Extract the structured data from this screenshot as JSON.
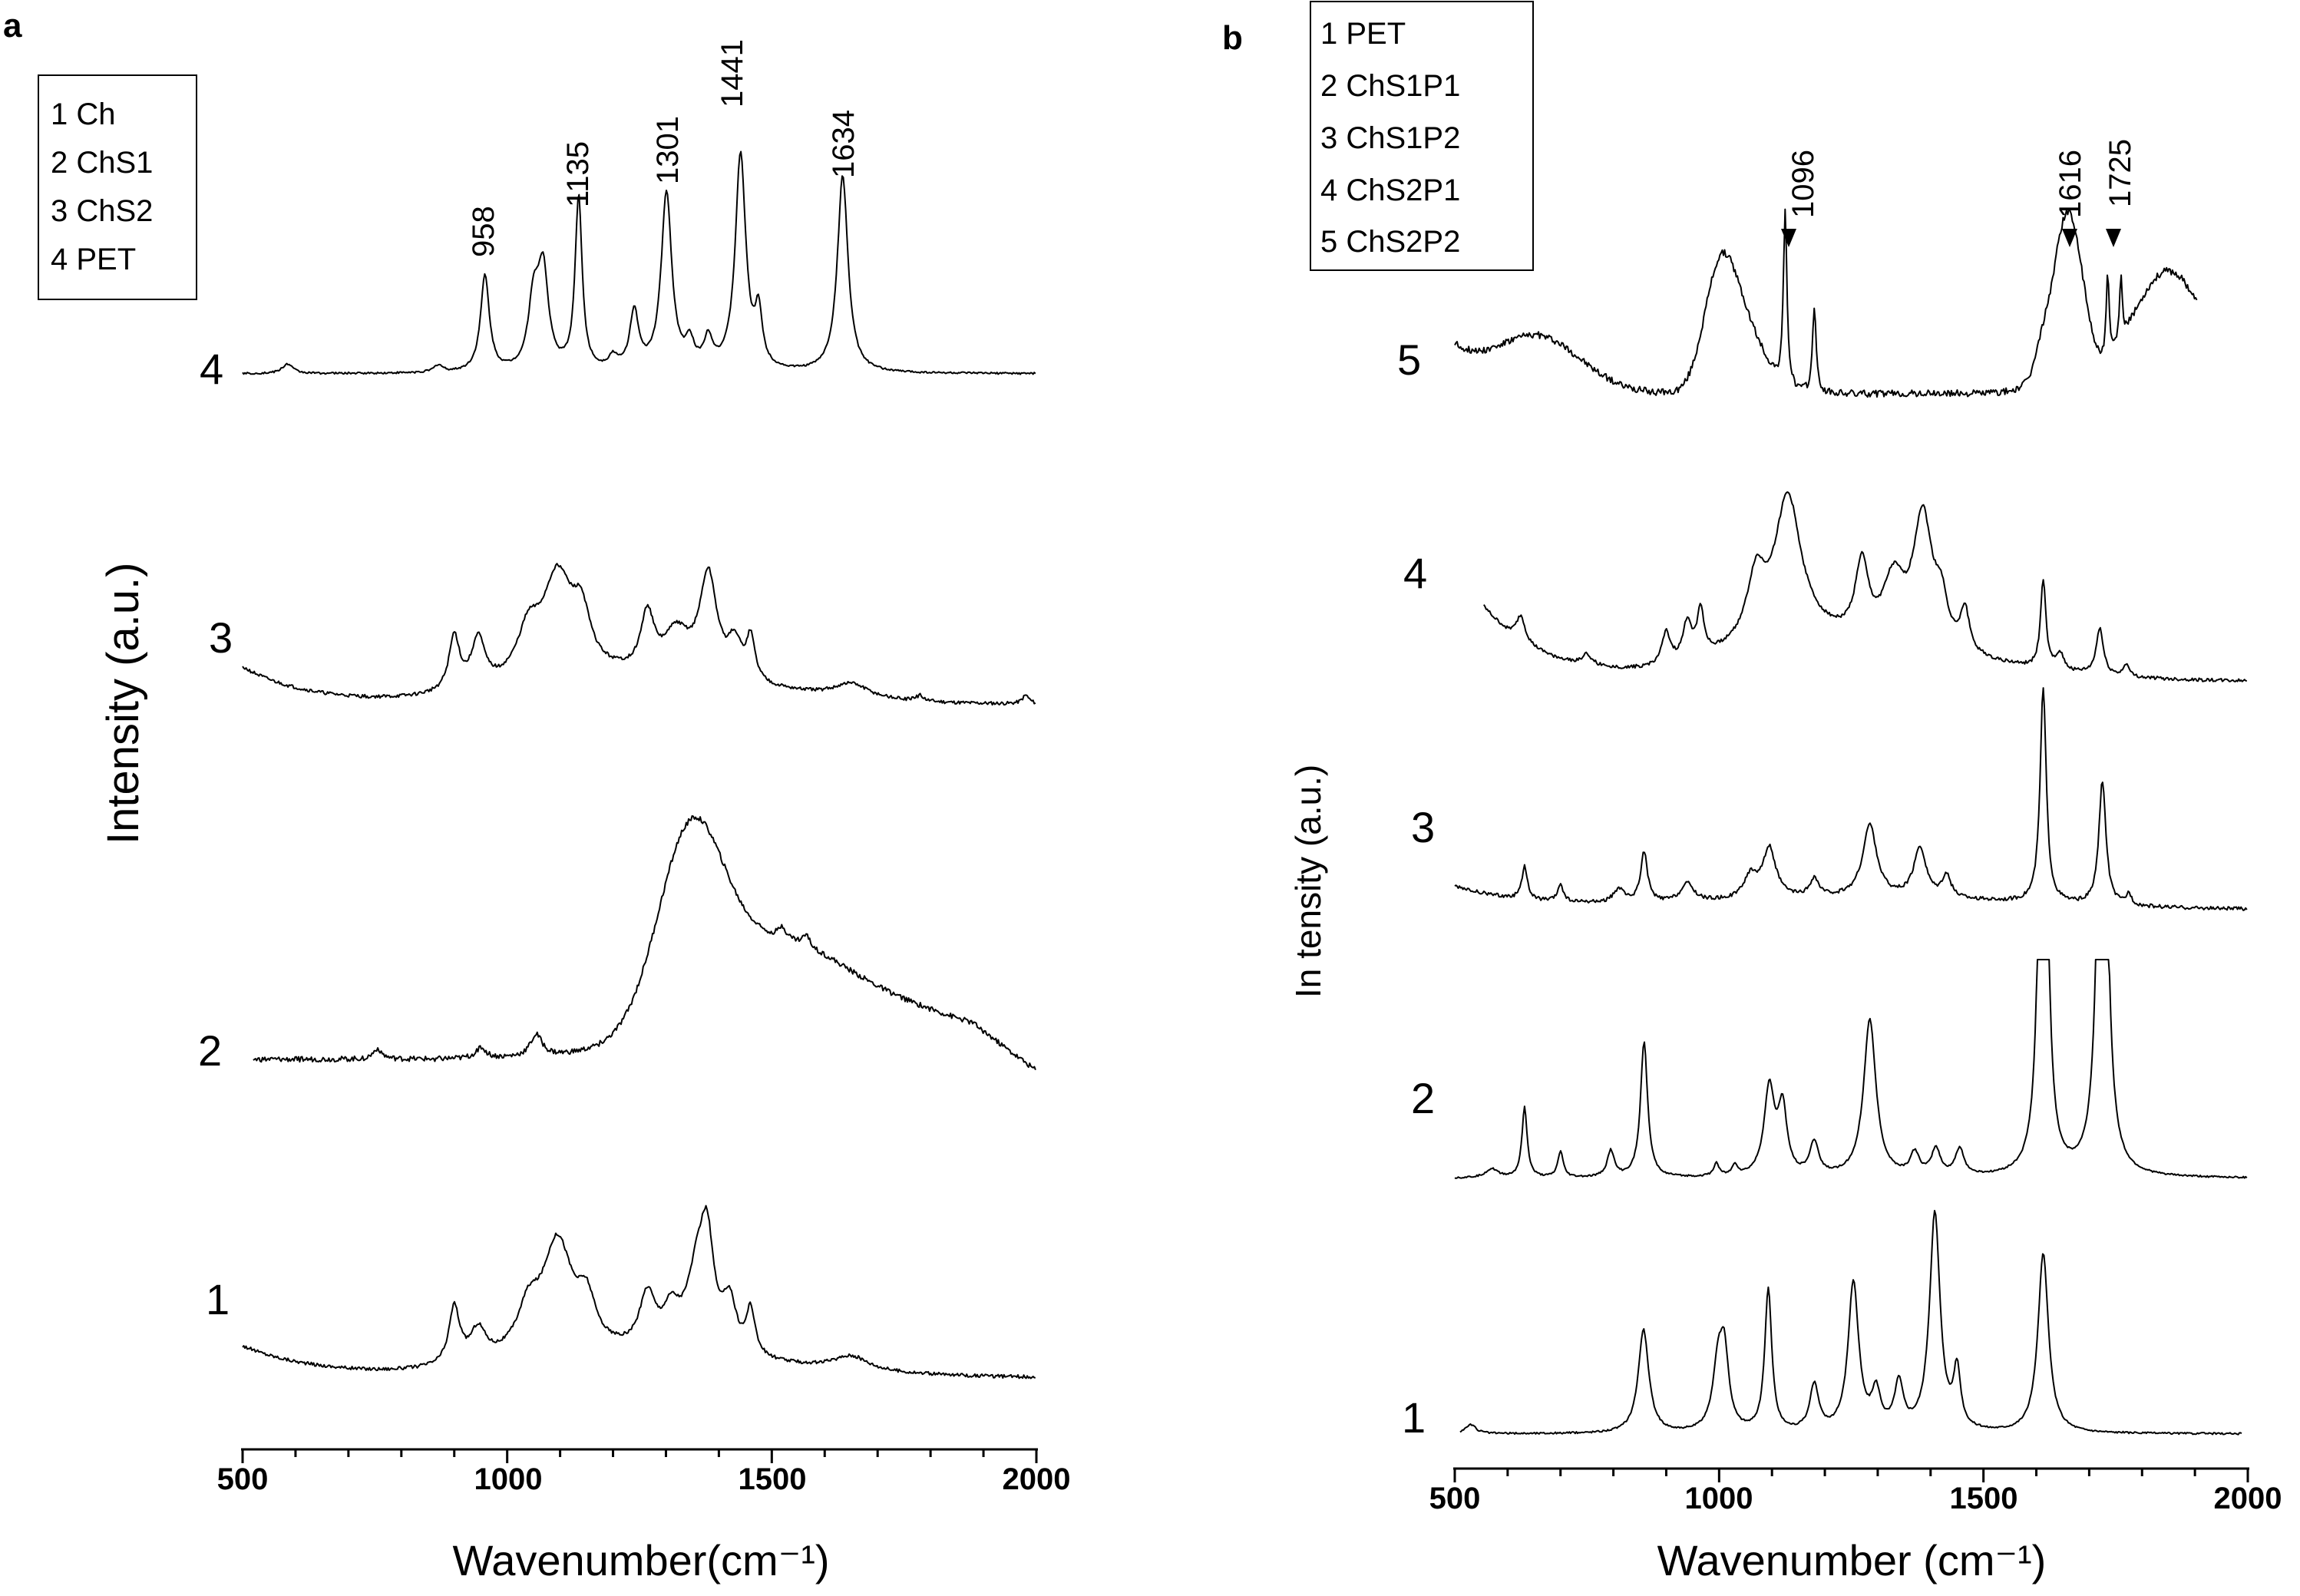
{
  "figure": {
    "panel_a_letter": "a",
    "panel_b_letter": "b"
  },
  "chart_data": [
    {
      "type": "line",
      "panel": "a",
      "xlabel": "Wavenumber(cm⁻¹)",
      "ylabel": "Intensity (a.u.)",
      "xlim": [
        500,
        2000
      ],
      "xticks": [
        500,
        1000,
        1500,
        2000
      ],
      "xtick_labels": [
        "500",
        "1000",
        "1500",
        "2000"
      ],
      "legend": [
        "1 Ch",
        "2 ChS1",
        "3 ChS2",
        "4 PET"
      ],
      "legend_position": "top-left",
      "peak_annotations": [
        {
          "x": 958,
          "label": "958"
        },
        {
          "x": 1135,
          "label": "1135"
        },
        {
          "x": 1301,
          "label": "1301"
        },
        {
          "x": 1441,
          "label": "1441"
        },
        {
          "x": 1634,
          "label": "1634"
        }
      ],
      "series": [
        {
          "name": "1",
          "label": "1",
          "xstart": 500,
          "xend": 2000,
          "baseline": 0.12,
          "amplitude": 0.62,
          "start_slope": 0.22,
          "start_decay": 140,
          "noise": 0.012,
          "broad": [
            [
              1330,
              250,
              0.1
            ],
            [
              1100,
              140,
              0.06
            ]
          ],
          "peaks": [
            [
              900,
              12,
              0.4
            ],
            [
              945,
              18,
              0.22
            ],
            [
              1040,
              25,
              0.28
            ],
            [
              1095,
              35,
              0.78
            ],
            [
              1150,
              20,
              0.3
            ],
            [
              1265,
              18,
              0.38
            ],
            [
              1310,
              20,
              0.25
            ],
            [
              1360,
              25,
              0.55
            ],
            [
              1378,
              15,
              0.62
            ],
            [
              1420,
              15,
              0.35
            ],
            [
              1460,
              10,
              0.32
            ],
            [
              1650,
              40,
              0.1
            ]
          ]
        },
        {
          "name": "2",
          "label": "2",
          "xstart": 520,
          "xend": 2000,
          "baseline": 0.1,
          "amplitude": 0.95,
          "start_slope": 0.0,
          "start_decay": 100,
          "noise": 0.012,
          "broad": [
            [
              1345,
              60,
              0.78
            ],
            [
              1480,
              130,
              0.34
            ],
            [
              1650,
              240,
              0.26
            ]
          ],
          "peaks": [
            [
              755,
              10,
              0.05
            ],
            [
              950,
              12,
              0.05
            ],
            [
              1055,
              14,
              0.1
            ],
            [
              1520,
              8,
              0.05
            ],
            [
              1565,
              8,
              0.05
            ]
          ],
          "tail_drop": [
            1880,
            2000,
            0.14
          ]
        },
        {
          "name": "3",
          "label": "3",
          "xstart": 500,
          "xend": 2000,
          "baseline": 0.1,
          "amplitude": 0.62,
          "start_slope": 0.26,
          "start_decay": 120,
          "noise": 0.012,
          "broad": [
            [
              1320,
              220,
              0.12
            ],
            [
              1110,
              150,
              0.08
            ]
          ],
          "peaks": [
            [
              900,
              12,
              0.38
            ],
            [
              945,
              15,
              0.34
            ],
            [
              1040,
              25,
              0.3
            ],
            [
              1095,
              35,
              0.7
            ],
            [
              1140,
              20,
              0.35
            ],
            [
              1265,
              15,
              0.4
            ],
            [
              1320,
              30,
              0.3
            ],
            [
              1380,
              20,
              0.72
            ],
            [
              1430,
              15,
              0.25
            ],
            [
              1460,
              10,
              0.3
            ],
            [
              1650,
              40,
              0.1
            ],
            [
              1780,
              8,
              0.04
            ],
            [
              1980,
              8,
              0.06
            ]
          ]
        },
        {
          "name": "4",
          "label": "4",
          "xstart": 500,
          "xend": 2000,
          "baseline": 0.06,
          "amplitude": 0.95,
          "start_slope": 0.0,
          "start_decay": 100,
          "noise": 0.004,
          "broad": [],
          "peaks": [
            [
              585,
              12,
              0.04
            ],
            [
              870,
              10,
              0.03
            ],
            [
              958,
              10,
              0.4
            ],
            [
              1050,
              12,
              0.28
            ],
            [
              1068,
              12,
              0.4
            ],
            [
              1135,
              8,
              0.72
            ],
            [
              1200,
              10,
              0.05
            ],
            [
              1240,
              10,
              0.24
            ],
            [
              1301,
              12,
              0.74
            ],
            [
              1345,
              10,
              0.1
            ],
            [
              1380,
              10,
              0.12
            ],
            [
              1441,
              12,
              0.9
            ],
            [
              1475,
              8,
              0.22
            ],
            [
              1634,
              12,
              0.82
            ]
          ]
        }
      ]
    },
    {
      "type": "line",
      "panel": "b",
      "xlabel": "Wavenumber (cm⁻¹)",
      "ylabel": "In tensity (a.u.)",
      "xlim": [
        500,
        2000
      ],
      "xticks": [
        500,
        1000,
        1500,
        2000
      ],
      "xtick_labels": [
        "500",
        "1000",
        "1500",
        "2000"
      ],
      "legend": [
        "1 PET",
        "2 ChS1P1",
        "3 ChS1P2",
        "4 ChS2P1",
        "5 ChS2P2"
      ],
      "legend_position": "top-left",
      "peak_annotations": [
        {
          "x": 1096,
          "label": "1096"
        },
        {
          "x": 1616,
          "label": "1616"
        },
        {
          "x": 1725,
          "label": "1725"
        }
      ],
      "series": [
        {
          "name": "1",
          "label": "1",
          "xstart": 510,
          "xend": 1990,
          "baseline": 0.05,
          "amplitude": 0.95,
          "start_slope": 0.0,
          "start_decay": 100,
          "noise": 0.004,
          "broad": [],
          "peaks": [
            [
              530,
              12,
              0.04
            ],
            [
              857,
              12,
              0.45
            ],
            [
              998,
              12,
              0.28
            ],
            [
              1010,
              10,
              0.3
            ],
            [
              1093,
              8,
              0.62
            ],
            [
              1180,
              10,
              0.2
            ],
            [
              1254,
              12,
              0.65
            ],
            [
              1297,
              10,
              0.16
            ],
            [
              1340,
              10,
              0.2
            ],
            [
              1408,
              12,
              0.95
            ],
            [
              1450,
              8,
              0.25
            ],
            [
              1613,
              12,
              0.78
            ]
          ]
        },
        {
          "name": "2",
          "label": "2",
          "xstart": 500,
          "xend": 2000,
          "baseline": 0.05,
          "amplitude": 0.95,
          "start_slope": 0.0,
          "start_decay": 100,
          "noise": 0.004,
          "broad": [],
          "peaks": [
            [
              570,
              15,
              0.04
            ],
            [
              632,
              6,
              0.32
            ],
            [
              700,
              6,
              0.12
            ],
            [
              795,
              8,
              0.12
            ],
            [
              858,
              8,
              0.62
            ],
            [
              995,
              6,
              0.06
            ],
            [
              1030,
              6,
              0.05
            ],
            [
              1095,
              12,
              0.4
            ],
            [
              1120,
              10,
              0.3
            ],
            [
              1180,
              10,
              0.15
            ],
            [
              1285,
              14,
              0.72
            ],
            [
              1370,
              10,
              0.1
            ],
            [
              1410,
              10,
              0.12
            ],
            [
              1455,
              10,
              0.12
            ],
            [
              1613,
              8,
              3.0
            ],
            [
              1725,
              9,
              3.0
            ]
          ]
        },
        {
          "name": "3",
          "label": "3",
          "xstart": 500,
          "xend": 2000,
          "baseline": 0.08,
          "amplitude": 0.95,
          "start_slope": 0.1,
          "start_decay": 150,
          "noise": 0.008,
          "broad": [
            [
              1280,
              300,
              0.05
            ]
          ],
          "peaks": [
            [
              632,
              6,
              0.15
            ],
            [
              700,
              6,
              0.08
            ],
            [
              810,
              12,
              0.06
            ],
            [
              858,
              8,
              0.22
            ],
            [
              940,
              15,
              0.08
            ],
            [
              1060,
              15,
              0.1
            ],
            [
              1095,
              15,
              0.22
            ],
            [
              1180,
              10,
              0.08
            ],
            [
              1285,
              16,
              0.32
            ],
            [
              1380,
              14,
              0.22
            ],
            [
              1430,
              10,
              0.1
            ],
            [
              1613,
              7,
              0.95
            ],
            [
              1725,
              8,
              0.55
            ],
            [
              1775,
              6,
              0.05
            ]
          ]
        },
        {
          "name": "4",
          "label": "4",
          "xstart": 555,
          "xend": 2000,
          "baseline": 0.06,
          "amplitude": 0.95,
          "start_slope": 0.35,
          "start_decay": 110,
          "noise": 0.008,
          "broad": [
            [
              1280,
              250,
              0.12
            ],
            [
              1130,
              100,
              0.1
            ]
          ],
          "peaks": [
            [
              625,
              10,
              0.12
            ],
            [
              750,
              12,
              0.05
            ],
            [
              900,
              10,
              0.15
            ],
            [
              940,
              10,
              0.18
            ],
            [
              965,
              8,
              0.22
            ],
            [
              1070,
              20,
              0.28
            ],
            [
              1130,
              30,
              0.65
            ],
            [
              1270,
              15,
              0.35
            ],
            [
              1330,
              25,
              0.3
            ],
            [
              1385,
              22,
              0.62
            ],
            [
              1420,
              15,
              0.2
            ],
            [
              1465,
              10,
              0.2
            ],
            [
              1613,
              6,
              0.42
            ],
            [
              1645,
              8,
              0.08
            ],
            [
              1720,
              8,
              0.22
            ],
            [
              1770,
              6,
              0.06
            ]
          ]
        },
        {
          "name": "5",
          "label": "5",
          "xstart": 500,
          "xend": 1905,
          "baseline": 0.06,
          "amplitude": 0.95,
          "start_slope": 0.15,
          "start_decay": 80,
          "noise": 0.012,
          "broad": [
            [
              660,
              80,
              0.18
            ],
            [
              1000,
              30,
              0.35
            ],
            [
              1045,
              40,
              0.22
            ],
            [
              1660,
              28,
              0.6
            ],
            [
              1850,
              70,
              0.42
            ]
          ],
          "peaks": [
            [
              1125,
              4,
              0.6
            ],
            [
              1180,
              4,
              0.3
            ],
            [
              1610,
              20,
              0.1
            ],
            [
              1735,
              3,
              0.3
            ],
            [
              1760,
              3,
              0.22
            ]
          ]
        }
      ]
    }
  ]
}
